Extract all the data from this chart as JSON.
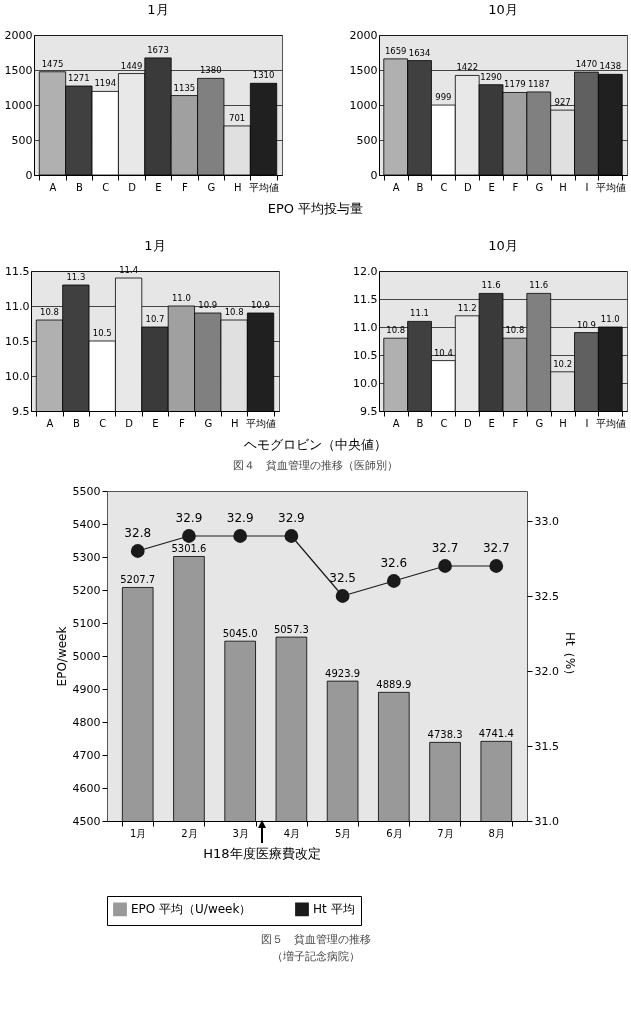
{
  "chart_data": [
    {
      "type": "bar",
      "title": "1月",
      "categories": [
        "A",
        "B",
        "C",
        "D",
        "E",
        "F",
        "G",
        "H",
        "平均値"
      ],
      "values": [
        1475,
        1271,
        1194,
        1449,
        1673,
        1135,
        1380,
        701,
        1310
      ],
      "colors": [
        "#b0b0b0",
        "#404040",
        "#ffffff",
        "#e8e8e8",
        "#3a3a3a",
        "#a0a0a0",
        "#808080",
        "#e0e0e0",
        "#202020"
      ],
      "ylim": [
        0,
        2000
      ],
      "yticks": [
        0,
        500,
        1000,
        1500,
        2000
      ],
      "grid": "y",
      "data_labels": true,
      "annotations": [
        "EPO 平均投与量"
      ]
    },
    {
      "type": "bar",
      "title": "10月",
      "categories": [
        "A",
        "B",
        "C",
        "D",
        "E",
        "F",
        "G",
        "H",
        "I",
        "平均値"
      ],
      "values": [
        1659,
        1634,
        999,
        1422,
        1290,
        1179,
        1187,
        927,
        1470,
        1438
      ],
      "colors": [
        "#b0b0b0",
        "#404040",
        "#ffffff",
        "#e8e8e8",
        "#3a3a3a",
        "#a0a0a0",
        "#808080",
        "#e0e0e0",
        "#606060",
        "#202020"
      ],
      "ylim": [
        0,
        2000
      ],
      "yticks": [
        0,
        500,
        1000,
        1500,
        2000
      ],
      "grid": "y",
      "data_labels": true
    },
    {
      "type": "bar",
      "title": "1月",
      "categories": [
        "A",
        "B",
        "C",
        "D",
        "E",
        "F",
        "G",
        "H",
        "平均値"
      ],
      "values": [
        10.8,
        11.3,
        10.5,
        11.4,
        10.7,
        11.0,
        10.9,
        10.8,
        10.9
      ],
      "value_labels": [
        "10.8",
        "11.3",
        "10.5",
        "11.4",
        "10.7",
        "11.0",
        "10.9",
        "10.8",
        "10.9"
      ],
      "colors": [
        "#b0b0b0",
        "#404040",
        "#ffffff",
        "#e8e8e8",
        "#3a3a3a",
        "#a0a0a0",
        "#808080",
        "#e0e0e0",
        "#202020"
      ],
      "ylim": [
        9.5,
        11.5
      ],
      "yticks": [
        9.5,
        {
          "value": 10,
          "label": "10.0"
        },
        10.5,
        {
          "value": 11,
          "label": "11.0"
        },
        11.5
      ],
      "grid": "y",
      "annotations": [
        "ヘモグロビン（中央値）",
        "図４　貧血管理の推移（医師別）"
      ]
    },
    {
      "type": "bar",
      "title": "10月",
      "categories": [
        "A",
        "B",
        "C",
        "D",
        "E",
        "F",
        "G",
        "H",
        "I",
        "平均値"
      ],
      "values": [
        10.8,
        11.1,
        10.4,
        11.2,
        11.6,
        10.8,
        11.6,
        10.2,
        10.9,
        11.0
      ],
      "value_labels": [
        "10.8",
        "11.1",
        "10.4",
        "11.2",
        "11.6",
        "10.8",
        "11.6",
        "10.2",
        "10.9",
        "11.0"
      ],
      "colors": [
        "#b0b0b0",
        "#404040",
        "#ffffff",
        "#e8e8e8",
        "#3a3a3a",
        "#a0a0a0",
        "#808080",
        "#e0e0e0",
        "#606060",
        "#202020"
      ],
      "ylim": [
        9.5,
        12.0
      ],
      "yticks": [
        9.5,
        {
          "value": 10,
          "label": "10.0"
        },
        10.5,
        {
          "value": 11,
          "label": "11.0"
        },
        11.5,
        {
          "value": 12,
          "label": "12.0"
        }
      ],
      "grid": "y"
    },
    {
      "type": "bar",
      "categories": [
        "1月",
        "2月",
        "3月",
        "4月",
        "5月",
        "6月",
        "7月",
        "8月"
      ],
      "ylabel": "EPO/week",
      "y2label": "Ht（%）",
      "ylim": [
        4500,
        5500
      ],
      "yticks": [
        4500,
        4600,
        4700,
        4800,
        4900,
        5000,
        5100,
        5200,
        5300,
        5400,
        5500
      ],
      "y2lim": [
        31.0,
        33.2
      ],
      "y2ticks": [
        {
          "value": 31,
          "label": "31.0"
        },
        31.5,
        {
          "value": 32,
          "label": "32.0"
        },
        32.5,
        {
          "value": 33,
          "label": "33.0"
        }
      ],
      "legend": "bottom",
      "marker": "circle",
      "annotations": [
        "H18年度医療費改定",
        "図５　貧血管理の推移",
        "（増子記念病院）"
      ],
      "series": [
        {
          "name": "EPO 平均（U/week）",
          "type": "bar",
          "color": "#999999",
          "values": [
            5207.7,
            5301.6,
            5045.0,
            5057.3,
            4923.9,
            4889.9,
            4738.3,
            4741.4
          ],
          "value_labels": [
            "5207.7",
            "5301.6",
            "5045.0",
            "5057.3",
            "4923.9",
            "4889.9",
            "4738.3",
            "4741.4"
          ]
        },
        {
          "name": "Ht 平均",
          "type": "line",
          "axis": "y2",
          "color": "#1a1a1a",
          "values": [
            32.8,
            32.9,
            32.9,
            32.9,
            32.5,
            32.6,
            32.7,
            32.7
          ],
          "value_labels": [
            "32.8",
            "32.9",
            "32.9",
            "32.9",
            "32.5",
            "32.6",
            "32.7",
            "32.7"
          ]
        }
      ]
    }
  ]
}
